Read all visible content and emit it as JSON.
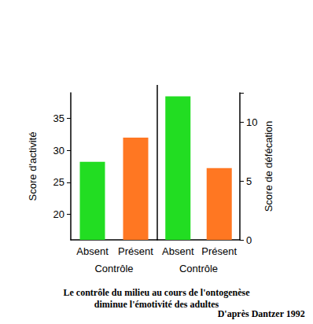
{
  "chart_data": [
    {
      "type": "bar",
      "categories": [
        "Absent",
        "Présent"
      ],
      "values": [
        28.2,
        32
      ],
      "colors": [
        "#22dd22",
        "#ff7722"
      ],
      "x_label": "Contrôle",
      "y_label": "Score d'activité",
      "ylim": [
        16,
        39
      ],
      "yticks": [
        20,
        25,
        30,
        35
      ],
      "grid": false
    },
    {
      "type": "bar",
      "categories": [
        "Absent",
        "Présent"
      ],
      "values": [
        12.2,
        6.1
      ],
      "colors": [
        "#22dd22",
        "#ff7722"
      ],
      "x_label": "Contrôle",
      "y_label": "Score de défécation",
      "ylim": [
        0,
        12.5
      ],
      "yticks": [
        0,
        5,
        10
      ],
      "grid": false
    }
  ],
  "caption": [
    "Le contrôle du milieu au cours de l'ontogenèse",
    "diminue l'émotivité des adultes"
  ],
  "source": "D'après Dantzer 1992"
}
